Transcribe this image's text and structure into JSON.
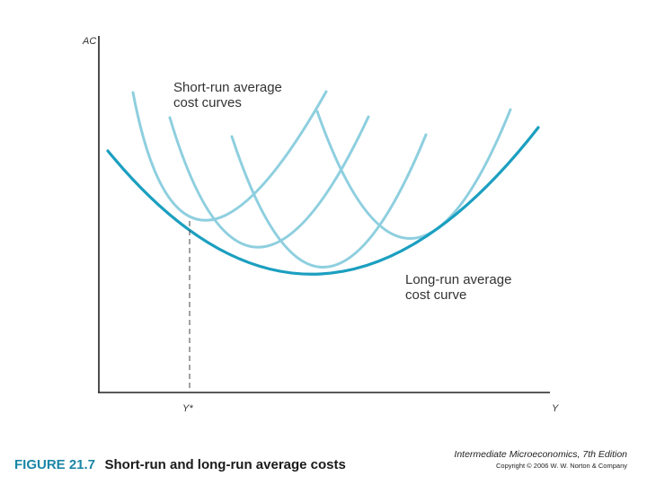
{
  "axes": {
    "y_label": "AC",
    "x_label": "Y",
    "x_marker_label": "Y*"
  },
  "labels": {
    "short_run_line1": "Short-run average",
    "short_run_line2": "cost curves",
    "long_run_line1": "Long-run average",
    "long_run_line2": "cost curve"
  },
  "caption": {
    "figure_number": "FIGURE 21.7",
    "figure_title": "Short-run and long-run average costs"
  },
  "credit": {
    "book_title": "Intermediate Microeconomics, 7th Edition",
    "copyright": "Copyright © 2006 W. W. Norton & Company"
  },
  "colors": {
    "short_run_curve": "#8ecfdf",
    "long_run_curve": "#1b9fc0",
    "axis": "#222222",
    "figure_number": "#1a86a6"
  }
}
